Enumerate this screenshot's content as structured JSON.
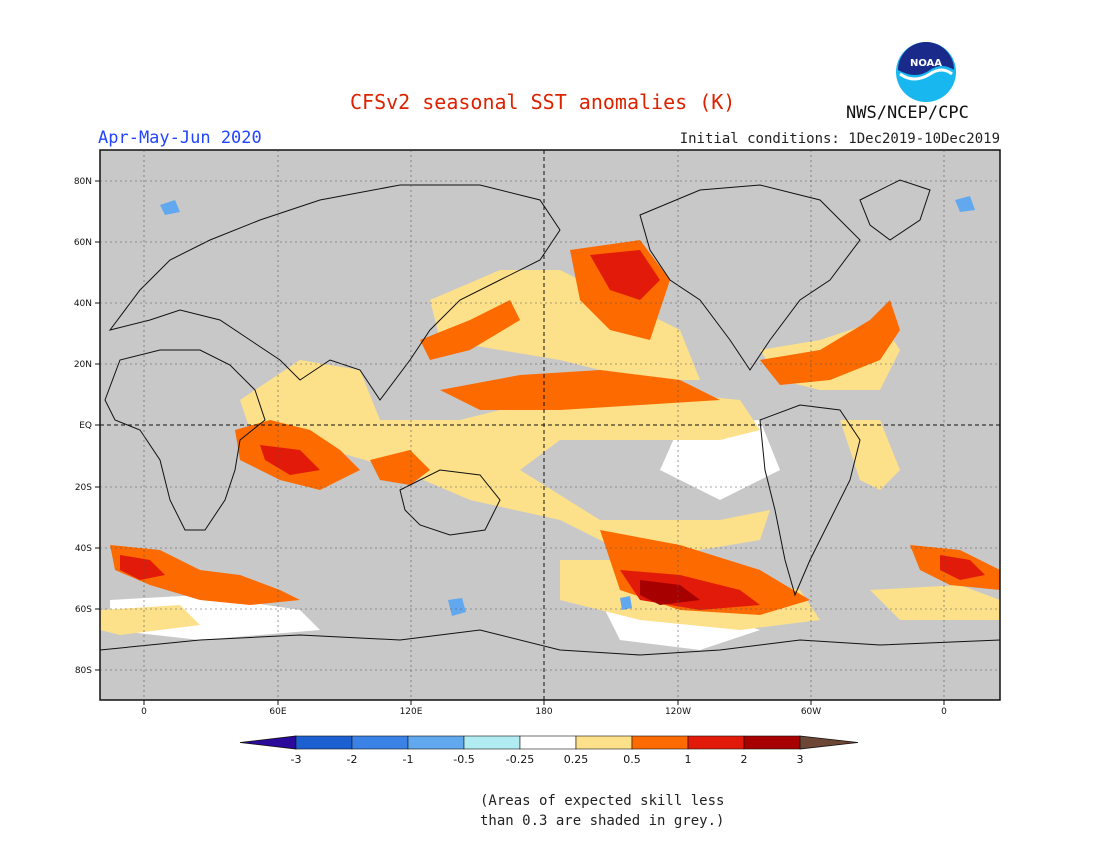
{
  "title": "CFSv2 seasonal SST anomalies (K)",
  "season": "Apr-May-Jun 2020",
  "initial_conditions": "Initial conditions: 1Dec2019-10Dec2019",
  "agency": "NWS/NCEP/CPC",
  "logo_text": "NOAA",
  "note_line1": "(Areas of expected skill less",
  "note_line2": "than 0.3 are shaded in grey.)",
  "map": {
    "lat_labels": [
      "80N",
      "60N",
      "40N",
      "20N",
      "EQ",
      "20S",
      "40S",
      "60S",
      "80S"
    ],
    "lon_labels": [
      "0",
      "60E",
      "120E",
      "180",
      "120W",
      "60W",
      "0"
    ],
    "grey_color": "#c8c8c8"
  },
  "colorbar": {
    "labels": [
      "-3",
      "-2",
      "-1",
      "-0.5",
      "-0.25",
      "0.25",
      "0.5",
      "1",
      "2",
      "3"
    ],
    "colors": [
      "#2a0a9a",
      "#1c5fd0",
      "#3a82e6",
      "#62a8ef",
      "#b0ecf2",
      "#ffffff",
      "#fde08a",
      "#fc6a00",
      "#e21a0a",
      "#a60000",
      "#6e4636"
    ]
  }
}
